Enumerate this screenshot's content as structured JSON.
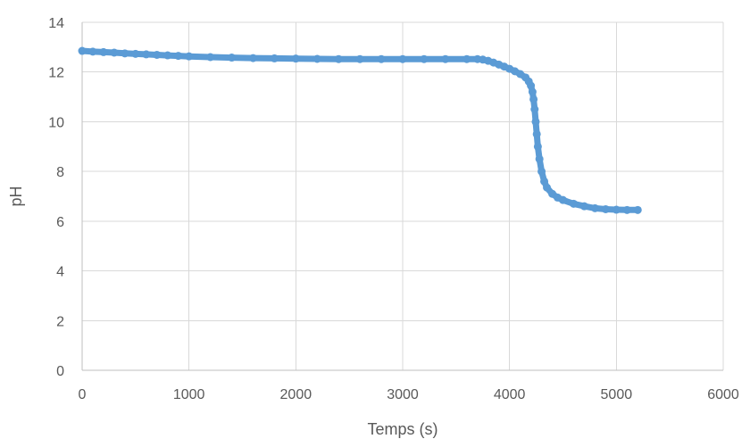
{
  "chart_data": {
    "type": "scatter",
    "xlabel": "Temps (s)",
    "ylabel": "pH",
    "xlim": [
      0,
      6000
    ],
    "ylim": [
      0,
      14
    ],
    "x_ticks": [
      "0",
      "1000",
      "2000",
      "3000",
      "4000",
      "5000",
      "6000"
    ],
    "y_ticks": [
      "0",
      "2",
      "4",
      "6",
      "8",
      "10",
      "12",
      "14"
    ],
    "grid": true,
    "series_color": "#5B9BD5",
    "series": [
      {
        "points": [
          [
            0,
            12.85
          ],
          [
            100,
            12.82
          ],
          [
            200,
            12.8
          ],
          [
            300,
            12.78
          ],
          [
            400,
            12.75
          ],
          [
            500,
            12.73
          ],
          [
            600,
            12.71
          ],
          [
            700,
            12.69
          ],
          [
            800,
            12.67
          ],
          [
            900,
            12.65
          ],
          [
            1000,
            12.63
          ],
          [
            1200,
            12.6
          ],
          [
            1400,
            12.58
          ],
          [
            1600,
            12.56
          ],
          [
            1800,
            12.55
          ],
          [
            2000,
            12.54
          ],
          [
            2200,
            12.53
          ],
          [
            2400,
            12.52
          ],
          [
            2600,
            12.52
          ],
          [
            2800,
            12.52
          ],
          [
            3000,
            12.52
          ],
          [
            3200,
            12.52
          ],
          [
            3400,
            12.52
          ],
          [
            3600,
            12.52
          ],
          [
            3700,
            12.52
          ],
          [
            3750,
            12.5
          ],
          [
            3800,
            12.45
          ],
          [
            3850,
            12.38
          ],
          [
            3900,
            12.3
          ],
          [
            3950,
            12.22
          ],
          [
            4000,
            12.13
          ],
          [
            4050,
            12.03
          ],
          [
            4100,
            11.92
          ],
          [
            4150,
            11.78
          ],
          [
            4180,
            11.62
          ],
          [
            4200,
            11.45
          ],
          [
            4215,
            11.2
          ],
          [
            4225,
            10.9
          ],
          [
            4235,
            10.5
          ],
          [
            4245,
            10.0
          ],
          [
            4255,
            9.5
          ],
          [
            4265,
            9.0
          ],
          [
            4280,
            8.5
          ],
          [
            4300,
            8.0
          ],
          [
            4325,
            7.6
          ],
          [
            4350,
            7.35
          ],
          [
            4400,
            7.1
          ],
          [
            4450,
            6.95
          ],
          [
            4500,
            6.85
          ],
          [
            4600,
            6.7
          ],
          [
            4700,
            6.6
          ],
          [
            4800,
            6.52
          ],
          [
            4900,
            6.48
          ],
          [
            5000,
            6.46
          ],
          [
            5100,
            6.45
          ],
          [
            5200,
            6.45
          ]
        ]
      }
    ]
  }
}
